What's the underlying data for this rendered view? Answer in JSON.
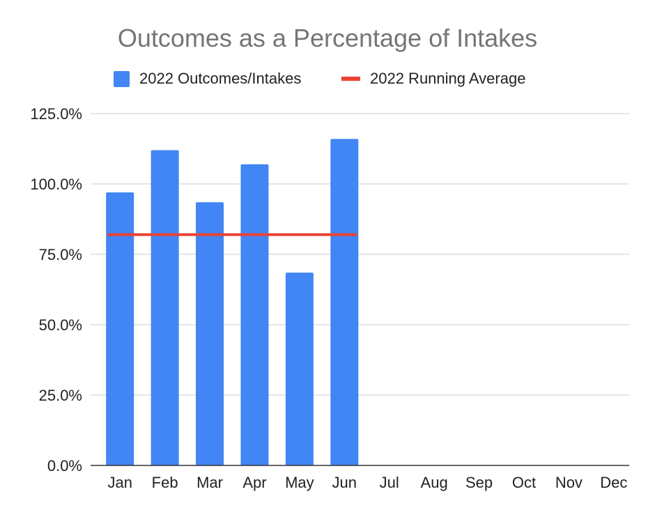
{
  "chart_data": {
    "type": "bar",
    "title": "Outcomes as a Percentage of Intakes",
    "categories": [
      "Jan",
      "Feb",
      "Mar",
      "Apr",
      "May",
      "Jun",
      "Jul",
      "Aug",
      "Sep",
      "Oct",
      "Nov",
      "Dec"
    ],
    "series": [
      {
        "name": "2022 Outcomes/Intakes",
        "type": "bar",
        "color": "#4285f4",
        "values": [
          97,
          112,
          93.5,
          107,
          68.5,
          116,
          null,
          null,
          null,
          null,
          null,
          null
        ]
      },
      {
        "name": "2022 Running Average",
        "type": "line",
        "color": "#ea4335",
        "values": [
          82,
          82,
          82,
          82,
          82,
          82,
          null,
          null,
          null,
          null,
          null,
          null
        ]
      }
    ],
    "y_ticks": [
      "0.0%",
      "25.0%",
      "50.0%",
      "75.0%",
      "100.0%",
      "125.0%"
    ],
    "ylim": [
      0,
      125
    ],
    "grid": true,
    "legend_position": "top"
  }
}
